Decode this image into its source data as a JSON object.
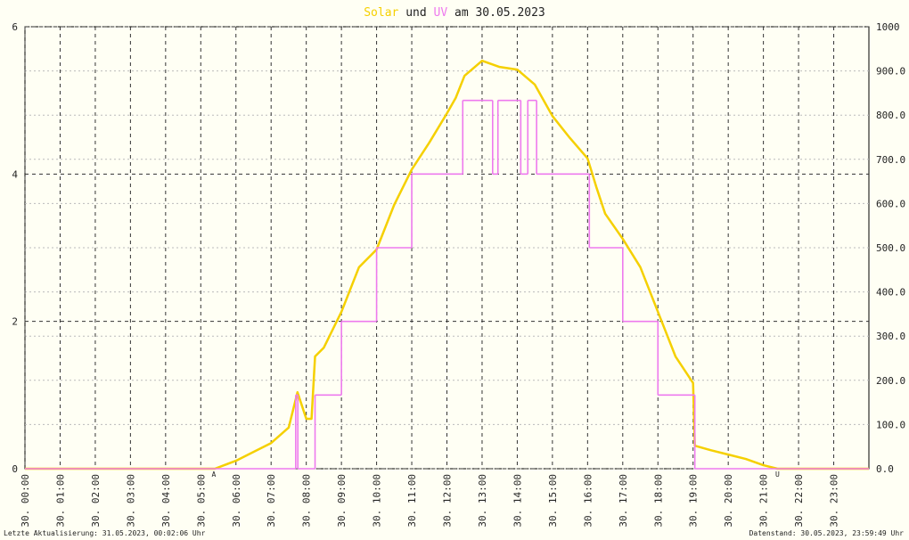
{
  "chart_data": {
    "type": "line",
    "title_joiner": "und",
    "title_suffix": "am 30.05.2023",
    "series": [
      {
        "name": "Solar",
        "color": "#f5d000",
        "axis": "y2",
        "x": [
          0,
          5.4,
          6.0,
          7.0,
          7.5,
          7.75,
          8.0,
          8.15,
          8.25,
          8.5,
          9.0,
          9.5,
          10.0,
          10.5,
          11.0,
          11.5,
          12.0,
          12.25,
          12.5,
          13.0,
          13.5,
          14.0,
          14.5,
          15.0,
          15.5,
          16.0,
          16.25,
          16.5,
          17.0,
          17.5,
          18.0,
          18.5,
          19.0,
          19.05,
          19.5,
          20.0,
          20.5,
          21.0,
          21.4,
          24
        ],
        "values": [
          0,
          0,
          18,
          58,
          93,
          173,
          113,
          113,
          254,
          274,
          355,
          456,
          496,
          597,
          677,
          738,
          804,
          839,
          889,
          923,
          909,
          903,
          869,
          798,
          748,
          702,
          637,
          577,
          520,
          456,
          355,
          254,
          194,
          52,
          42,
          32,
          22,
          8,
          0,
          0
        ]
      },
      {
        "name": "UV",
        "color": "#ee7aee",
        "step": true,
        "x": [
          0,
          7.7,
          7.76,
          8.25,
          9.0,
          10.0,
          11.0,
          12.45,
          13.3,
          13.45,
          14.1,
          14.3,
          14.55,
          16.05,
          17.0,
          18.0,
          19.05,
          24
        ],
        "values": [
          0,
          1,
          0,
          1,
          2,
          3,
          4,
          5,
          4,
          5,
          4,
          5,
          4,
          3,
          2,
          1,
          0,
          0
        ]
      }
    ],
    "xlim": [
      0,
      24
    ],
    "xticks": [
      {
        "value": 0,
        "label": "30. 00:00"
      },
      {
        "value": 1,
        "label": "30. 01:00"
      },
      {
        "value": 2,
        "label": "30. 02:00"
      },
      {
        "value": 3,
        "label": "30. 03:00"
      },
      {
        "value": 4,
        "label": "30. 04:00"
      },
      {
        "value": 5,
        "label": "30. 05:00"
      },
      {
        "value": 6,
        "label": "30. 06:00"
      },
      {
        "value": 7,
        "label": "30. 07:00"
      },
      {
        "value": 8,
        "label": "30. 08:00"
      },
      {
        "value": 9,
        "label": "30. 09:00"
      },
      {
        "value": 10,
        "label": "30. 10:00"
      },
      {
        "value": 11,
        "label": "30. 11:00"
      },
      {
        "value": 12,
        "label": "30. 12:00"
      },
      {
        "value": 13,
        "label": "30. 13:00"
      },
      {
        "value": 14,
        "label": "30. 14:00"
      },
      {
        "value": 15,
        "label": "30. 15:00"
      },
      {
        "value": 16,
        "label": "30. 16:00"
      },
      {
        "value": 17,
        "label": "30. 17:00"
      },
      {
        "value": 18,
        "label": "30. 18:00"
      },
      {
        "value": 19,
        "label": "30. 19:00"
      },
      {
        "value": 20,
        "label": "30. 20:00"
      },
      {
        "value": 21,
        "label": "30. 21:00"
      },
      {
        "value": 22,
        "label": "30. 22:00"
      },
      {
        "value": 23,
        "label": "30. 23:00"
      }
    ],
    "ylim": [
      0,
      6
    ],
    "yticks": [
      0,
      2,
      4,
      6
    ],
    "y2lim": [
      0,
      1000
    ],
    "y2ticks": [
      {
        "value": 0,
        "label": "0.0"
      },
      {
        "value": 100,
        "label": "100.0"
      },
      {
        "value": 200,
        "label": "200.0"
      },
      {
        "value": 300,
        "label": "300.0"
      },
      {
        "value": 400,
        "label": "400.0"
      },
      {
        "value": 500,
        "label": "500.0"
      },
      {
        "value": 600,
        "label": "600.0"
      },
      {
        "value": 700,
        "label": "700.0"
      },
      {
        "value": 800,
        "label": "800.0"
      },
      {
        "value": 900,
        "label": "900.0"
      },
      1000
    ],
    "markers": [
      {
        "x": 5.37,
        "label": "A"
      },
      {
        "x": 21.4,
        "label": "U"
      }
    ],
    "footer_left": "Letzte Aktualisierung: 31.05.2023, 00:02:06 Uhr",
    "footer_right": "Datenstand: 30.05.2023, 23:59:49 Uhr"
  }
}
